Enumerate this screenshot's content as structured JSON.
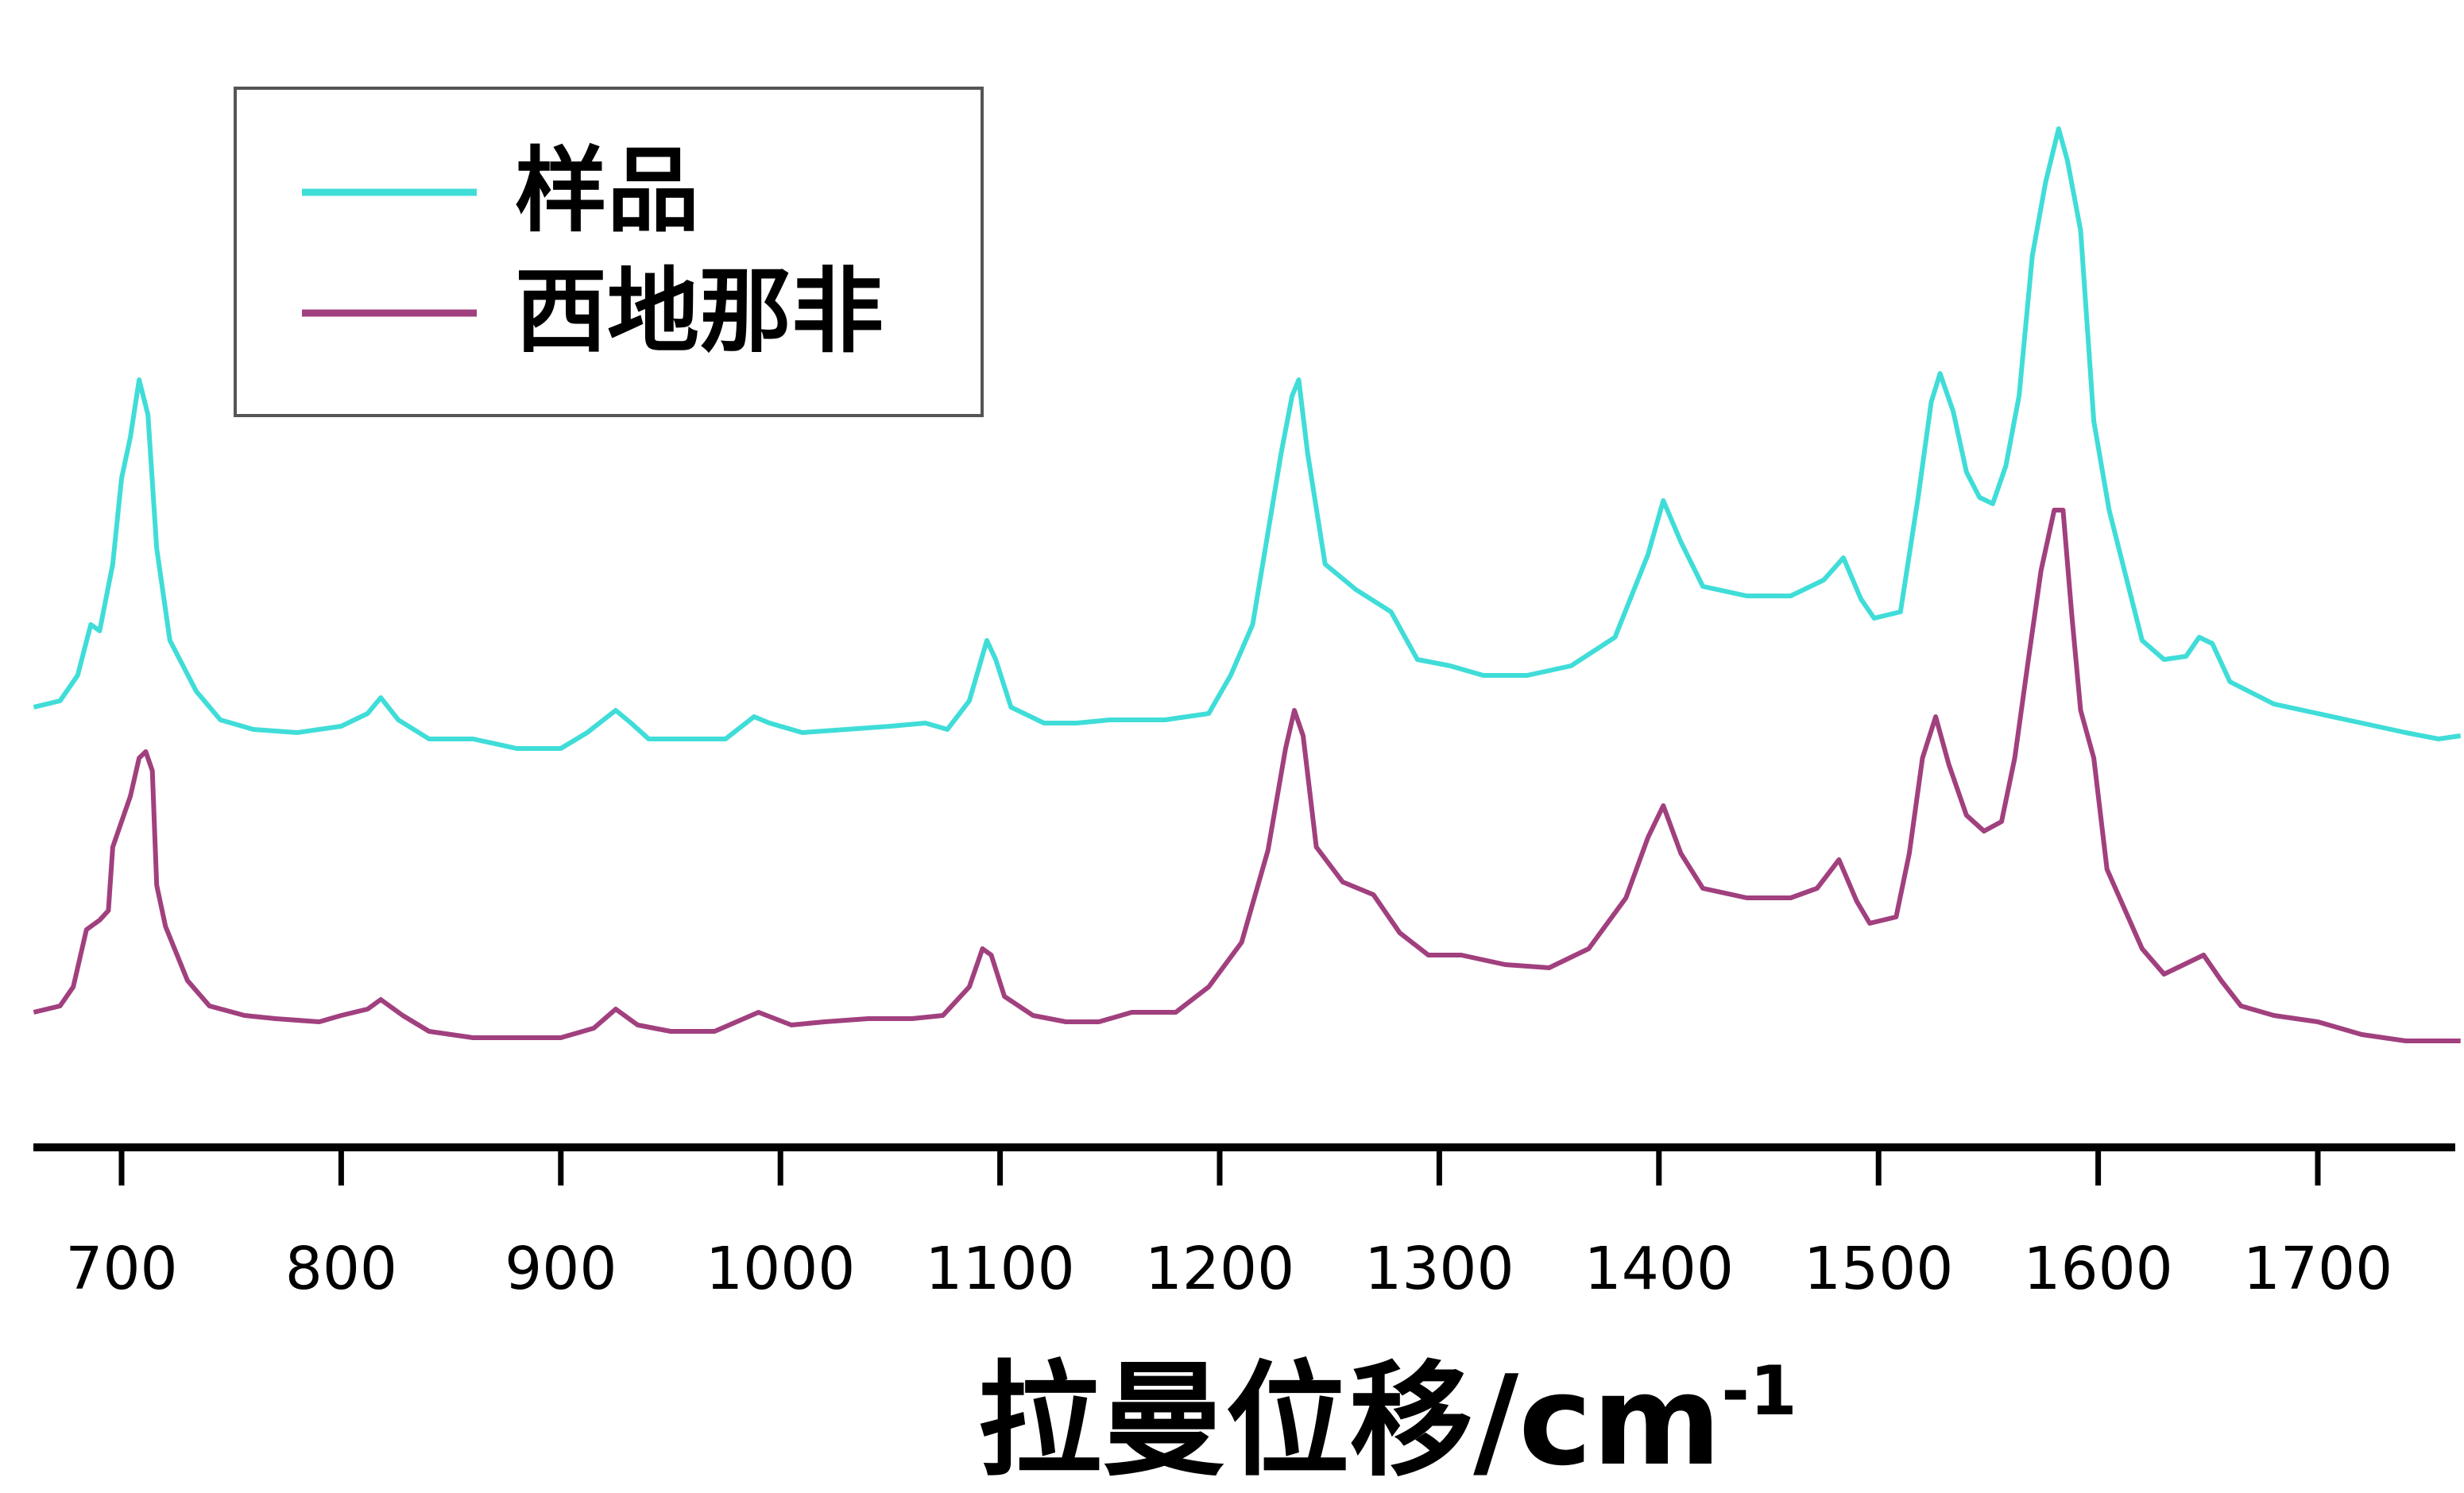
{
  "chart_data": {
    "type": "line",
    "xlabel": "拉曼位移/cm",
    "xlabel_sup": "-1",
    "xlim": [
      660,
      1765
    ],
    "xticks": [
      700,
      800,
      900,
      1000,
      1100,
      1200,
      1300,
      1400,
      1500,
      1600,
      1700
    ],
    "y_axis_visible": false,
    "grid": false,
    "legend_placement": "top-left",
    "series": [
      {
        "name": "样品",
        "color": "#40DDD8",
        "points": [
          [
            660,
            0.1
          ],
          [
            672,
            0.12
          ],
          [
            680,
            0.2
          ],
          [
            686,
            0.36
          ],
          [
            690,
            0.34
          ],
          [
            696,
            0.55
          ],
          [
            700,
            0.82
          ],
          [
            704,
            0.95
          ],
          [
            708,
            1.13
          ],
          [
            712,
            1.02
          ],
          [
            716,
            0.6
          ],
          [
            722,
            0.31
          ],
          [
            734,
            0.15
          ],
          [
            745,
            0.06
          ],
          [
            760,
            0.03
          ],
          [
            780,
            0.02
          ],
          [
            800,
            0.04
          ],
          [
            812,
            0.08
          ],
          [
            818,
            0.13
          ],
          [
            826,
            0.06
          ],
          [
            840,
            0.0
          ],
          [
            860,
            0.0
          ],
          [
            880,
            -0.03
          ],
          [
            900,
            -0.03
          ],
          [
            912,
            0.02
          ],
          [
            925,
            0.09
          ],
          [
            932,
            0.05
          ],
          [
            940,
            0.0
          ],
          [
            955,
            0.0
          ],
          [
            975,
            0.0
          ],
          [
            988,
            0.07
          ],
          [
            995,
            0.05
          ],
          [
            1010,
            0.02
          ],
          [
            1030,
            0.03
          ],
          [
            1050,
            0.04
          ],
          [
            1066,
            0.05
          ],
          [
            1076,
            0.03
          ],
          [
            1086,
            0.12
          ],
          [
            1094,
            0.31
          ],
          [
            1098,
            0.25
          ],
          [
            1105,
            0.1
          ],
          [
            1120,
            0.05
          ],
          [
            1135,
            0.05
          ],
          [
            1150,
            0.06
          ],
          [
            1175,
            0.06
          ],
          [
            1195,
            0.08
          ],
          [
            1205,
            0.2
          ],
          [
            1215,
            0.36
          ],
          [
            1222,
            0.65
          ],
          [
            1228,
            0.9
          ],
          [
            1233,
            1.08
          ],
          [
            1236,
            1.13
          ],
          [
            1240,
            0.9
          ],
          [
            1248,
            0.55
          ],
          [
            1262,
            0.47
          ],
          [
            1278,
            0.4
          ],
          [
            1290,
            0.25
          ],
          [
            1305,
            0.23
          ],
          [
            1320,
            0.2
          ],
          [
            1340,
            0.2
          ],
          [
            1360,
            0.23
          ],
          [
            1380,
            0.32
          ],
          [
            1395,
            0.58
          ],
          [
            1402,
            0.75
          ],
          [
            1410,
            0.62
          ],
          [
            1420,
            0.48
          ],
          [
            1440,
            0.45
          ],
          [
            1460,
            0.45
          ],
          [
            1475,
            0.5
          ],
          [
            1484,
            0.57
          ],
          [
            1492,
            0.44
          ],
          [
            1498,
            0.38
          ],
          [
            1510,
            0.4
          ],
          [
            1518,
            0.76
          ],
          [
            1524,
            1.06
          ],
          [
            1528,
            1.15
          ],
          [
            1534,
            1.03
          ],
          [
            1540,
            0.84
          ],
          [
            1546,
            0.76
          ],
          [
            1552,
            0.74
          ],
          [
            1558,
            0.86
          ],
          [
            1564,
            1.08
          ],
          [
            1570,
            1.52
          ],
          [
            1576,
            1.75
          ],
          [
            1582,
            1.92
          ],
          [
            1586,
            1.82
          ],
          [
            1592,
            1.6
          ],
          [
            1598,
            1.0
          ],
          [
            1605,
            0.72
          ],
          [
            1620,
            0.31
          ],
          [
            1630,
            0.25
          ],
          [
            1640,
            0.26
          ],
          [
            1646,
            0.32
          ],
          [
            1652,
            0.3
          ],
          [
            1660,
            0.18
          ],
          [
            1680,
            0.11
          ],
          [
            1700,
            0.08
          ],
          [
            1720,
            0.05
          ],
          [
            1740,
            0.02
          ],
          [
            1755,
            0.0
          ],
          [
            1765,
            0.01
          ]
        ]
      },
      {
        "name": "西地那非",
        "color": "#A1407E",
        "points": [
          [
            660,
            0.1
          ],
          [
            672,
            0.12
          ],
          [
            678,
            0.18
          ],
          [
            684,
            0.36
          ],
          [
            690,
            0.39
          ],
          [
            694,
            0.42
          ],
          [
            696,
            0.62
          ],
          [
            704,
            0.78
          ],
          [
            708,
            0.9
          ],
          [
            711,
            0.92
          ],
          [
            714,
            0.86
          ],
          [
            716,
            0.5
          ],
          [
            720,
            0.37
          ],
          [
            730,
            0.2
          ],
          [
            740,
            0.12
          ],
          [
            756,
            0.09
          ],
          [
            770,
            0.08
          ],
          [
            790,
            0.07
          ],
          [
            800,
            0.09
          ],
          [
            812,
            0.11
          ],
          [
            818,
            0.14
          ],
          [
            828,
            0.09
          ],
          [
            840,
            0.04
          ],
          [
            860,
            0.02
          ],
          [
            880,
            0.02
          ],
          [
            900,
            0.02
          ],
          [
            915,
            0.05
          ],
          [
            925,
            0.11
          ],
          [
            935,
            0.06
          ],
          [
            950,
            0.04
          ],
          [
            970,
            0.04
          ],
          [
            990,
            0.1
          ],
          [
            1005,
            0.06
          ],
          [
            1020,
            0.07
          ],
          [
            1040,
            0.08
          ],
          [
            1060,
            0.08
          ],
          [
            1074,
            0.09
          ],
          [
            1086,
            0.18
          ],
          [
            1092,
            0.3
          ],
          [
            1096,
            0.28
          ],
          [
            1102,
            0.15
          ],
          [
            1115,
            0.09
          ],
          [
            1130,
            0.07
          ],
          [
            1145,
            0.07
          ],
          [
            1160,
            0.1
          ],
          [
            1180,
            0.1
          ],
          [
            1195,
            0.18
          ],
          [
            1210,
            0.32
          ],
          [
            1222,
            0.61
          ],
          [
            1230,
            0.93
          ],
          [
            1234,
            1.05
          ],
          [
            1238,
            0.97
          ],
          [
            1244,
            0.62
          ],
          [
            1256,
            0.51
          ],
          [
            1270,
            0.47
          ],
          [
            1282,
            0.35
          ],
          [
            1295,
            0.28
          ],
          [
            1310,
            0.28
          ],
          [
            1330,
            0.25
          ],
          [
            1350,
            0.24
          ],
          [
            1368,
            0.3
          ],
          [
            1385,
            0.46
          ],
          [
            1395,
            0.65
          ],
          [
            1402,
            0.75
          ],
          [
            1410,
            0.6
          ],
          [
            1420,
            0.49
          ],
          [
            1440,
            0.46
          ],
          [
            1460,
            0.46
          ],
          [
            1472,
            0.49
          ],
          [
            1482,
            0.58
          ],
          [
            1490,
            0.45
          ],
          [
            1496,
            0.38
          ],
          [
            1508,
            0.4
          ],
          [
            1514,
            0.6
          ],
          [
            1520,
            0.9
          ],
          [
            1526,
            1.03
          ],
          [
            1532,
            0.88
          ],
          [
            1540,
            0.72
          ],
          [
            1548,
            0.67
          ],
          [
            1556,
            0.7
          ],
          [
            1562,
            0.9
          ],
          [
            1568,
            1.2
          ],
          [
            1574,
            1.49
          ],
          [
            1580,
            1.68
          ],
          [
            1584,
            1.68
          ],
          [
            1588,
            1.35
          ],
          [
            1592,
            1.05
          ],
          [
            1598,
            0.9
          ],
          [
            1604,
            0.55
          ],
          [
            1620,
            0.3
          ],
          [
            1630,
            0.22
          ],
          [
            1642,
            0.26
          ],
          [
            1648,
            0.28
          ],
          [
            1656,
            0.2
          ],
          [
            1665,
            0.12
          ],
          [
            1680,
            0.09
          ],
          [
            1700,
            0.07
          ],
          [
            1720,
            0.03
          ],
          [
            1740,
            0.01
          ],
          [
            1765,
            0.01
          ]
        ]
      }
    ]
  }
}
